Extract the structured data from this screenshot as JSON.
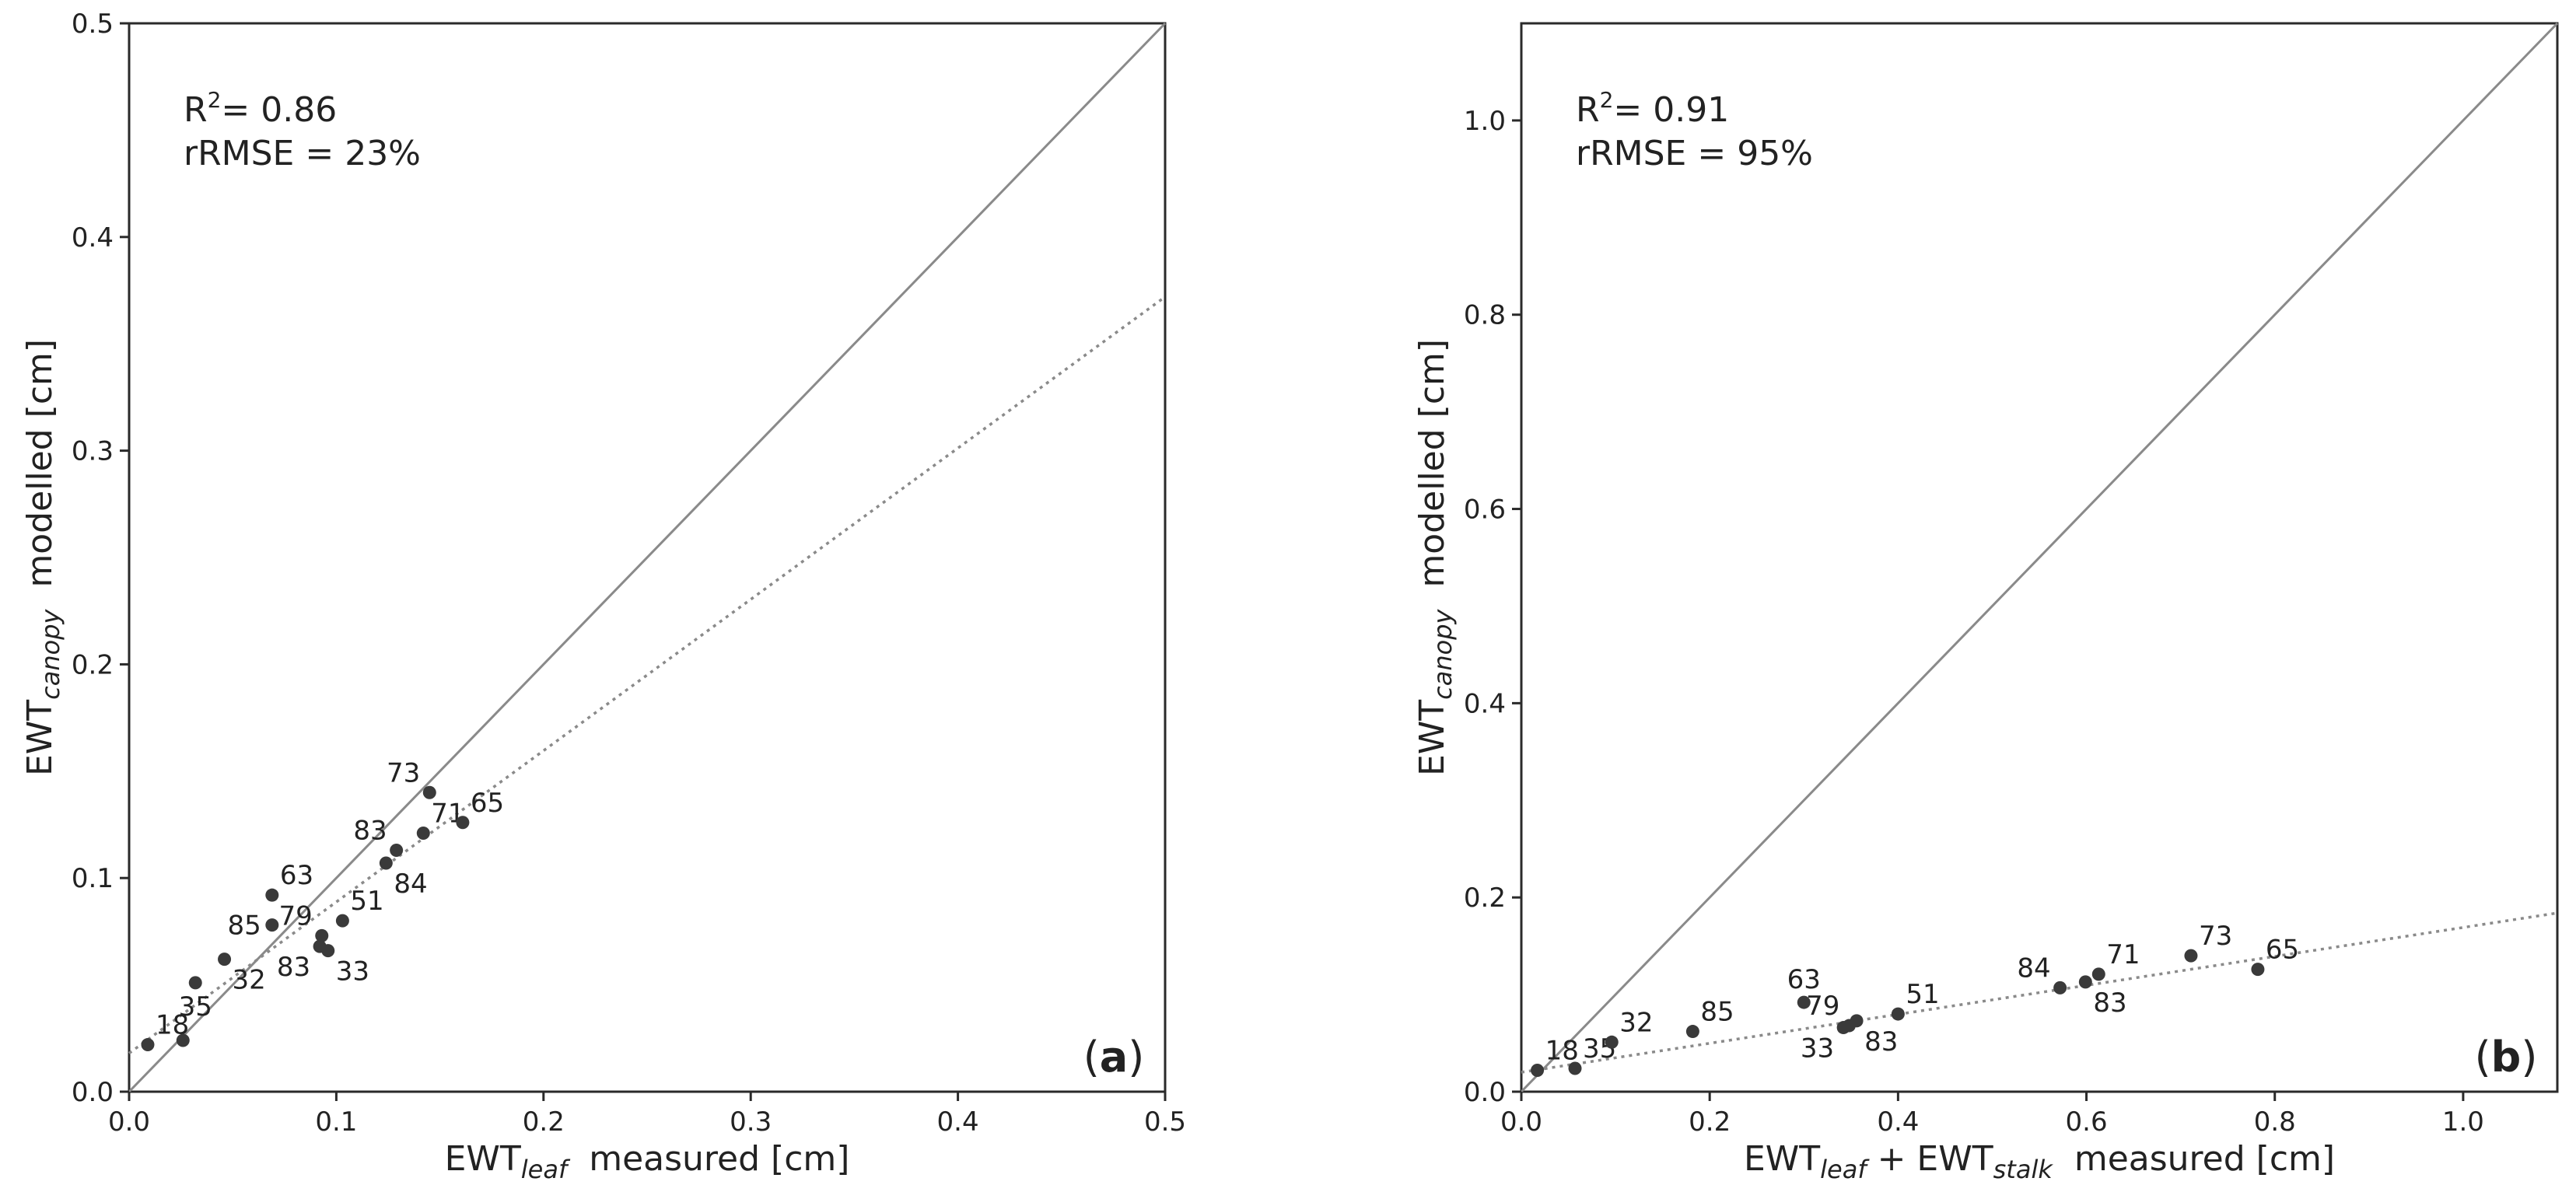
{
  "chart_data": [
    {
      "type": "scatter",
      "panel_label": "a",
      "stats": {
        "r2": "= 0.86",
        "rrmse": "rRMSE = 23%"
      },
      "xlabel": {
        "base": "EWT",
        "sub": "leaf",
        "rest": "  measured [cm]"
      },
      "ylabel": {
        "base": "EWT",
        "sub": "canopy",
        "rest": "  modelled [cm]"
      },
      "xlim": [
        0.0,
        0.5
      ],
      "ylim": [
        0.0,
        0.5
      ],
      "xticks": [
        "0.0",
        "0.1",
        "0.2",
        "0.3",
        "0.4",
        "0.5"
      ],
      "yticks": [
        "0.0",
        "0.1",
        "0.2",
        "0.3",
        "0.4",
        "0.5"
      ],
      "one_to_one_line": true,
      "fit_line": {
        "x0": 0.0,
        "y0": 0.018,
        "x1": 0.5,
        "y1": 0.372
      },
      "points": [
        {
          "label": "18",
          "x": 0.009,
          "y": 0.022,
          "label_pos": "above-right"
        },
        {
          "label": "",
          "x": 0.026,
          "y": 0.024,
          "label_pos": "none"
        },
        {
          "label": "35",
          "x": 0.032,
          "y": 0.051,
          "label_pos": "below"
        },
        {
          "label": "32",
          "x": 0.046,
          "y": 0.062,
          "label_pos": "below-right"
        },
        {
          "label": "85",
          "x": 0.069,
          "y": 0.078,
          "label_pos": "left"
        },
        {
          "label": "63",
          "x": 0.069,
          "y": 0.092,
          "label_pos": "above-right"
        },
        {
          "label": "79",
          "x": 0.093,
          "y": 0.073,
          "label_pos": "above-left"
        },
        {
          "label": "83",
          "x": 0.092,
          "y": 0.068,
          "label_pos": "below-left"
        },
        {
          "label": "33",
          "x": 0.096,
          "y": 0.066,
          "label_pos": "below-right"
        },
        {
          "label": "51",
          "x": 0.103,
          "y": 0.08,
          "label_pos": "above-right"
        },
        {
          "label": "84",
          "x": 0.124,
          "y": 0.107,
          "label_pos": "below-right"
        },
        {
          "label": "83",
          "x": 0.129,
          "y": 0.113,
          "label_pos": "above-left"
        },
        {
          "label": "71",
          "x": 0.142,
          "y": 0.121,
          "label_pos": "above-right"
        },
        {
          "label": "73",
          "x": 0.145,
          "y": 0.14,
          "label_pos": "above-left"
        },
        {
          "label": "65",
          "x": 0.161,
          "y": 0.126,
          "label_pos": "above-right"
        }
      ]
    },
    {
      "type": "scatter",
      "panel_label": "b",
      "stats": {
        "r2": "= 0.91",
        "rrmse": "rRMSE = 95%"
      },
      "xlabel": {
        "base": "EWT",
        "sub": "leaf",
        "mid": " + EWT",
        "sub2": "stalk",
        "rest": "  measured [cm]"
      },
      "ylabel": {
        "base": "EWT",
        "sub": "canopy",
        "rest": "  modelled [cm]"
      },
      "xlim": [
        0.0,
        1.1
      ],
      "ylim": [
        0.0,
        1.1
      ],
      "xticks": [
        "0.0",
        "0.2",
        "0.4",
        "0.6",
        "0.8",
        "1.0"
      ],
      "yticks": [
        "0.0",
        "0.2",
        "0.4",
        "0.6",
        "0.8",
        "1.0"
      ],
      "one_to_one_line": true,
      "fit_line": {
        "x0": 0.0,
        "y0": 0.02,
        "x1": 1.1,
        "y1": 0.184
      },
      "points": [
        {
          "label": "18",
          "x": 0.017,
          "y": 0.022,
          "label_pos": "above-right"
        },
        {
          "label": "35",
          "x": 0.057,
          "y": 0.024,
          "label_pos": "above-right"
        },
        {
          "label": "32",
          "x": 0.096,
          "y": 0.051,
          "label_pos": "above-right"
        },
        {
          "label": "85",
          "x": 0.182,
          "y": 0.062,
          "label_pos": "above-right"
        },
        {
          "label": "63",
          "x": 0.3,
          "y": 0.092,
          "label_pos": "above"
        },
        {
          "label": "79",
          "x": 0.348,
          "y": 0.068,
          "label_pos": "above-left"
        },
        {
          "label": "33",
          "x": 0.342,
          "y": 0.066,
          "label_pos": "below-left"
        },
        {
          "label": "83",
          "x": 0.356,
          "y": 0.073,
          "label_pos": "below-right"
        },
        {
          "label": "51",
          "x": 0.4,
          "y": 0.08,
          "label_pos": "above-right"
        },
        {
          "label": "84",
          "x": 0.572,
          "y": 0.107,
          "label_pos": "above-left"
        },
        {
          "label": "83",
          "x": 0.599,
          "y": 0.113,
          "label_pos": "below-right"
        },
        {
          "label": "71",
          "x": 0.613,
          "y": 0.121,
          "label_pos": "above-right"
        },
        {
          "label": "73",
          "x": 0.711,
          "y": 0.14,
          "label_pos": "above-right"
        },
        {
          "label": "65",
          "x": 0.782,
          "y": 0.126,
          "label_pos": "above-right"
        }
      ]
    }
  ]
}
